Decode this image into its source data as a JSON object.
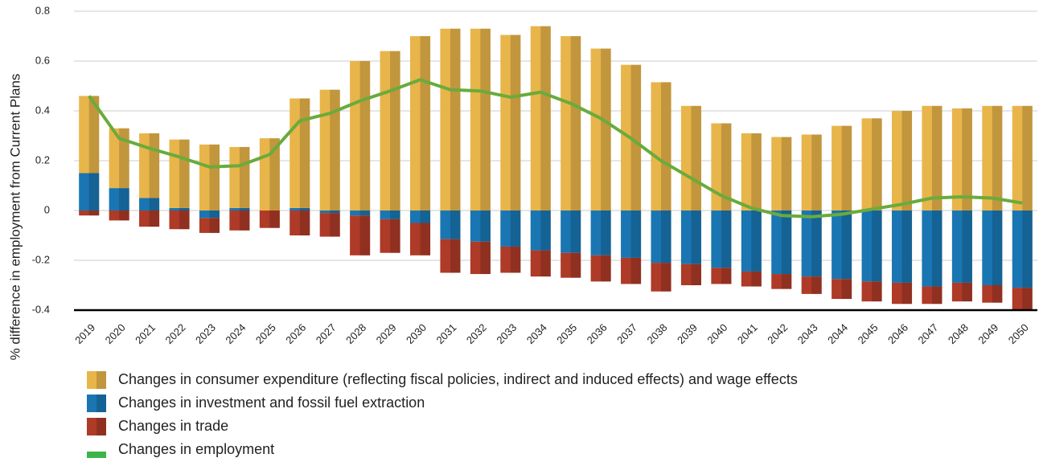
{
  "chart_data": {
    "type": "bar",
    "y_label": "% difference in employment from Current Plans",
    "categories": [
      "2019",
      "2020",
      "2021",
      "2022",
      "2023",
      "2024",
      "2025",
      "2026",
      "2027",
      "2028",
      "2029",
      "2030",
      "2031",
      "2032",
      "2033",
      "2034",
      "2035",
      "2036",
      "2037",
      "2038",
      "2039",
      "2040",
      "2041",
      "2042",
      "2043",
      "2044",
      "2045",
      "2046",
      "2047",
      "2048",
      "2049",
      "2050"
    ],
    "series": [
      {
        "name": "Changes in consumer expenditure (reflecting fiscal policies, indirect and induced effects) and wage effects",
        "color": "#e8b54a",
        "type": "bar",
        "values": [
          0.31,
          0.24,
          0.26,
          0.275,
          0.265,
          0.245,
          0.29,
          0.44,
          0.485,
          0.6,
          0.64,
          0.7,
          0.73,
          0.73,
          0.705,
          0.74,
          0.7,
          0.65,
          0.585,
          0.515,
          0.42,
          0.35,
          0.31,
          0.295,
          0.305,
          0.34,
          0.37,
          0.4,
          0.42,
          0.41,
          0.42,
          0.42
        ]
      },
      {
        "name": "Changes in investment and fossil fuel extraction",
        "color": "#1a76b2",
        "type": "bar",
        "values": [
          0.15,
          0.09,
          0.05,
          0.01,
          -0.03,
          0.01,
          0,
          0.01,
          -0.01,
          -0.02,
          -0.035,
          -0.05,
          -0.115,
          -0.125,
          -0.145,
          -0.16,
          -0.17,
          -0.18,
          -0.19,
          -0.21,
          -0.215,
          -0.23,
          -0.245,
          -0.255,
          -0.265,
          -0.275,
          -0.285,
          -0.29,
          -0.305,
          -0.29,
          -0.3,
          -0.31
        ]
      },
      {
        "name": "Changes in trade",
        "color": "#ae3a28",
        "type": "bar",
        "values": [
          -0.02,
          -0.04,
          -0.065,
          -0.075,
          -0.06,
          -0.08,
          -0.07,
          -0.1,
          -0.095,
          -0.16,
          -0.135,
          -0.13,
          -0.135,
          -0.13,
          -0.105,
          -0.105,
          -0.1,
          -0.105,
          -0.105,
          -0.115,
          -0.085,
          -0.065,
          -0.06,
          -0.06,
          -0.07,
          -0.08,
          -0.08,
          -0.085,
          -0.07,
          -0.075,
          -0.07,
          -0.09
        ]
      },
      {
        "name": "Changes in employment",
        "color": "#6aab3c",
        "type": "line",
        "values": [
          0.46,
          0.29,
          0.25,
          0.215,
          0.175,
          0.18,
          0.225,
          0.36,
          0.39,
          0.44,
          0.48,
          0.525,
          0.485,
          0.48,
          0.455,
          0.475,
          0.43,
          0.37,
          0.29,
          0.2,
          0.13,
          0.06,
          0.01,
          -0.02,
          -0.025,
          -0.015,
          0.005,
          0.025,
          0.05,
          0.055,
          0.05,
          0.03
        ]
      }
    ],
    "ylim": [
      -0.4,
      0.8
    ],
    "yticks": [
      -0.4,
      -0.2,
      0,
      0.2,
      0.4,
      0.6,
      0.8
    ],
    "grid": true
  }
}
